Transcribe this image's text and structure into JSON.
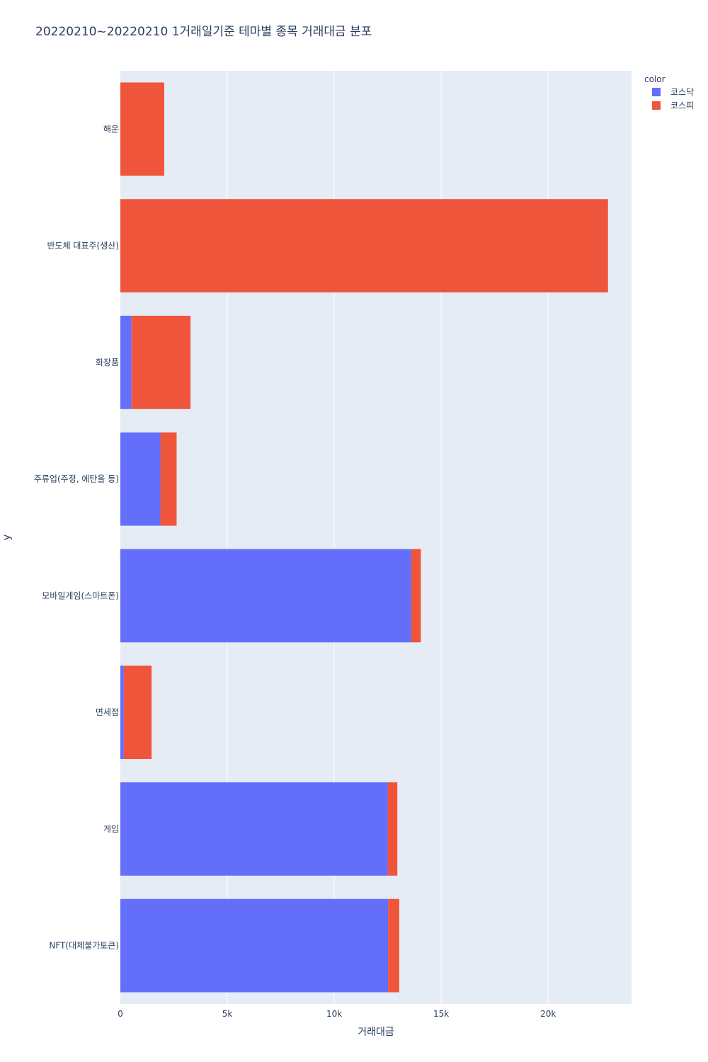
{
  "chart_data": {
    "type": "bar",
    "orientation": "horizontal",
    "barmode": "stack",
    "title": "20220210~20220210 1거래일기준 테마별 종목 거래대금 분포",
    "xlabel": "거래대금",
    "ylabel": "y",
    "xlim": [
      0,
      23900
    ],
    "x_ticks": [
      0,
      5000,
      10000,
      15000,
      20000
    ],
    "x_tick_labels": [
      "0",
      "5k",
      "10k",
      "15k",
      "20k"
    ],
    "grid": true,
    "categories": [
      "해운",
      "반도체 대표주(생산)",
      "화장품",
      "주류업(주정, 에탄올 등)",
      "모바일게임(스마트폰)",
      "면세점",
      "게임",
      "NFT(대체불가토큰)"
    ],
    "series": [
      {
        "name": "코스닥",
        "color": "#636efa",
        "values": [
          0,
          0,
          520,
          1870,
          13600,
          160,
          12500,
          12520
        ]
      },
      {
        "name": "코스피",
        "color": "#ef553b",
        "values": [
          2050,
          22800,
          2760,
          760,
          450,
          1300,
          450,
          520
        ]
      }
    ],
    "legend": {
      "title": "color",
      "position": "top-right"
    }
  }
}
